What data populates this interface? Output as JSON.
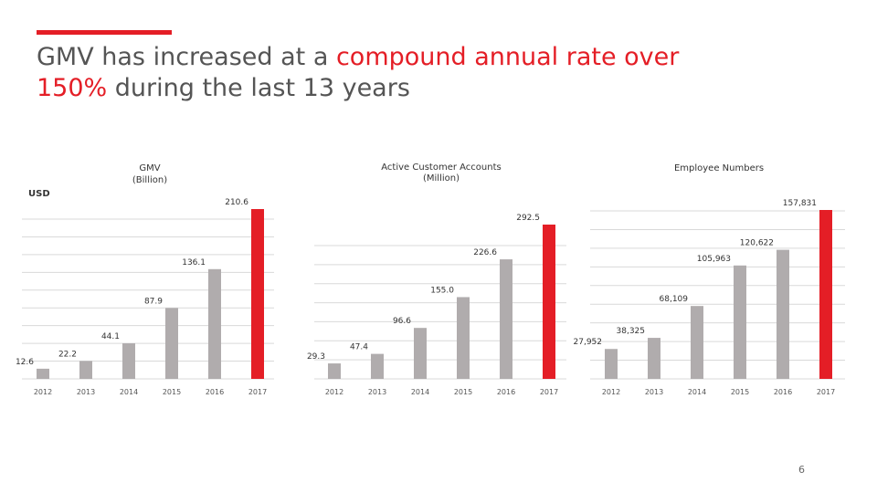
{
  "slide": {
    "title_part1": "GMV has increased at a ",
    "title_highlight1": "compound annual rate over",
    "title_highlight2": "150%",
    "title_part2": " during the last 13 years",
    "unit": "USD",
    "page_number": "6",
    "colors": {
      "accent": "#e41e26",
      "bar_gray": "#b0acad",
      "bar_red": "#e41e26"
    }
  },
  "chart_data": [
    {
      "type": "bar",
      "title": "GMV",
      "subtitle": "(Billion)",
      "categories": [
        "2012",
        "2013",
        "2014",
        "2015",
        "2016",
        "2017"
      ],
      "values": [
        12.6,
        22.2,
        44.1,
        87.9,
        136.1,
        210.6
      ],
      "value_labels": [
        "12.6",
        "22.2",
        "44.1",
        "87.9",
        "136.1",
        "210.6"
      ],
      "ylim": [
        0,
        210.6
      ]
    },
    {
      "type": "bar",
      "title": "Active Customer Accounts",
      "subtitle": "(Million)",
      "categories": [
        "2012",
        "2013",
        "2014",
        "2015",
        "2016",
        "2017"
      ],
      "values": [
        29.3,
        47.4,
        96.6,
        155.0,
        226.6,
        292.5
      ],
      "value_labels": [
        "29.3",
        "47.4",
        "96.6",
        "155.0",
        "226.6",
        "292.5"
      ],
      "ylim": [
        0,
        292.5
      ]
    },
    {
      "type": "bar",
      "title": "Employee Numbers",
      "subtitle": "",
      "categories": [
        "2012",
        "2013",
        "2014",
        "2015",
        "2016",
        "2017"
      ],
      "values": [
        27952,
        38325,
        68109,
        105963,
        120622,
        157831
      ],
      "value_labels": [
        "27,952",
        "38,325",
        "68,109",
        "105,963",
        "120,622",
        "157,831"
      ],
      "ylim": [
        0,
        157831
      ]
    }
  ]
}
